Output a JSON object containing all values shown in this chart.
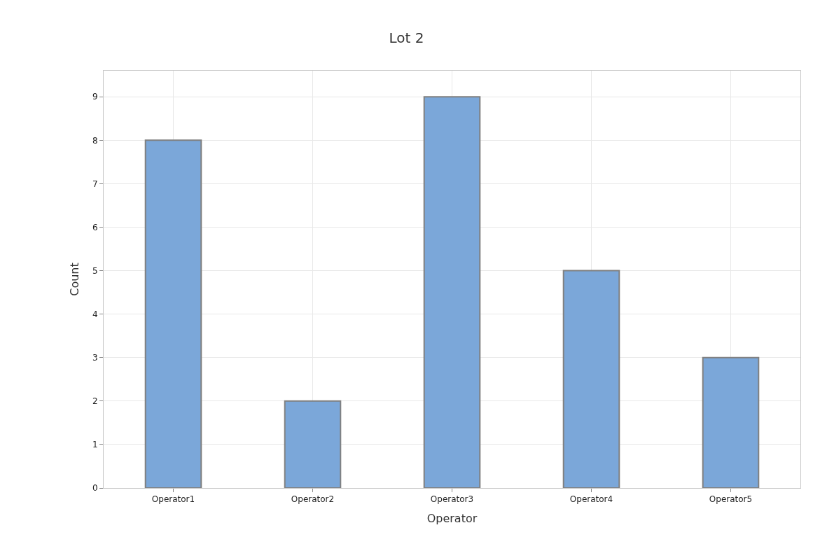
{
  "chart_data": {
    "type": "bar",
    "title": "Lot 2",
    "xlabel": "Operator",
    "ylabel": "Count",
    "categories": [
      "Operator1",
      "Operator2",
      "Operator3",
      "Operator4",
      "Operator5"
    ],
    "values": [
      8,
      2,
      9,
      5,
      3
    ],
    "color": "#7ba7d9",
    "ylim": [
      0,
      9.6
    ],
    "yticks": [
      0,
      1,
      2,
      3,
      4,
      5,
      6,
      7,
      8,
      9
    ],
    "grid": true,
    "legend": false
  }
}
